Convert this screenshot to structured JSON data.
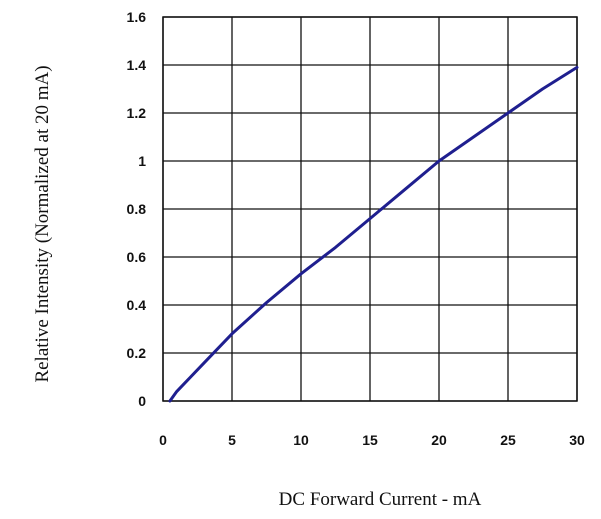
{
  "chart_data": {
    "type": "line",
    "title": "",
    "xlabel": "DC Forward Current - mA",
    "ylabel": "Relative Intensity (Normalized at 20 mA)",
    "xlim": [
      0,
      30
    ],
    "ylim": [
      0,
      1.6
    ],
    "x_ticks": [
      0,
      5,
      10,
      15,
      20,
      25,
      30
    ],
    "x_tick_labels": [
      "0",
      "5",
      "10",
      "15",
      "20",
      "25",
      "30"
    ],
    "y_ticks": [
      0,
      0.2,
      0.4,
      0.6,
      0.8,
      1.0,
      1.2,
      1.4,
      1.6
    ],
    "y_tick_labels": [
      "0",
      "0.2",
      "0.4",
      "0.6",
      "0.8",
      "1",
      "1.2",
      "1.4",
      "1.6"
    ],
    "grid": true,
    "series": [
      {
        "color": "#1f1f8f",
        "x": [
          0.5,
          1,
          2,
          3,
          4,
          5,
          7.5,
          10,
          12.5,
          15,
          17.5,
          20,
          22.5,
          25,
          27.5,
          30
        ],
        "y": [
          0.0,
          0.04,
          0.1,
          0.16,
          0.22,
          0.28,
          0.41,
          0.53,
          0.64,
          0.76,
          0.88,
          1.0,
          1.1,
          1.2,
          1.3,
          1.39
        ]
      }
    ]
  }
}
